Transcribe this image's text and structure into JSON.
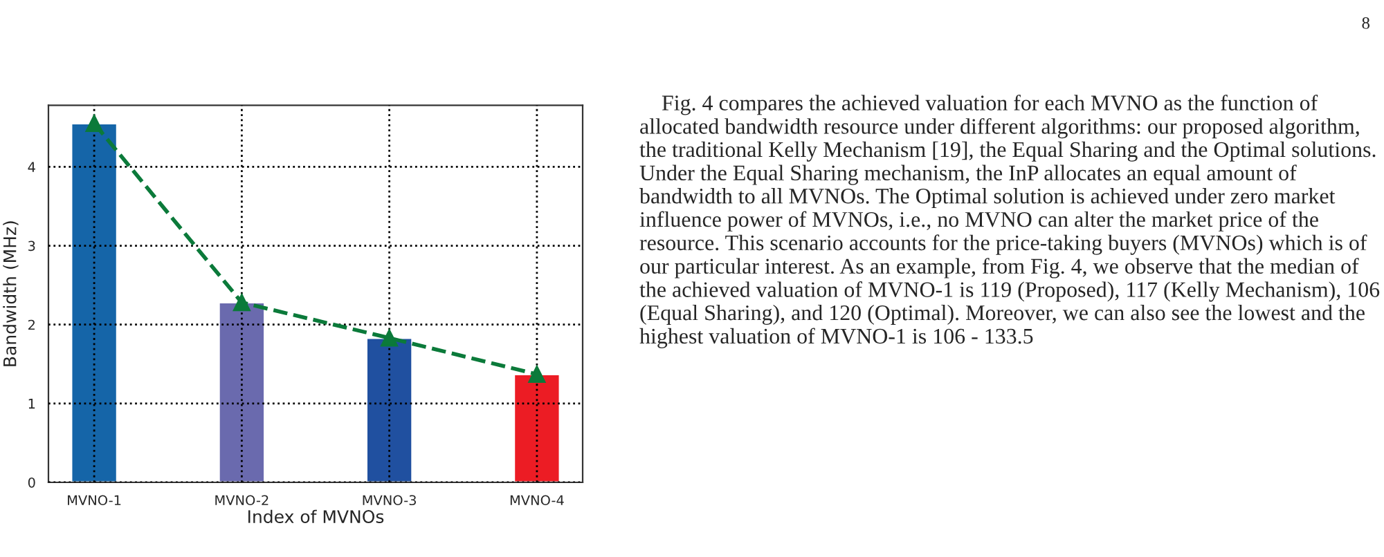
{
  "chart_data": {
    "type": "bar",
    "xlabel": "Index of MVNOs",
    "ylabel": "Bandwidth (MHz)",
    "categories": [
      "MVNO-1",
      "MVNO-2",
      "MVNO-3",
      "MVNO-4"
    ],
    "series": [
      {
        "colors": [
          "#1565a8",
          "#6a6aae",
          "#2050a0",
          "#ec1c24"
        ],
        "values": [
          4.55,
          2.28,
          1.83,
          1.37
        ]
      },
      {
        "type": "line",
        "color": "#0b7a3a",
        "values": [
          4.55,
          2.28,
          1.83,
          1.37
        ],
        "marker": "triangle",
        "line_style": "dashed"
      }
    ],
    "ylim": [
      0,
      4.78
    ],
    "yticks": [
      0,
      1,
      2,
      3,
      4
    ],
    "grid": true,
    "legend": false,
    "annotations": [
      "8",
      "Fig. 4 compares the achieved valuation for each MVNO as the function of allocated bandwidth resource under different algorithms: our proposed algorithm, the traditional Kelly Mechanism [19], the Equal Sharing and the Optimal solutions. Under the Equal Sharing mechanism, the InP allocates an equal amount of bandwidth to all MVNOs. The Optimal solution is achieved under zero market influence power of MVNOs, i.e., no MVNO can alter the market price of the resource. This scenario accounts for the price-taking buyers (MVNOs) which is of our particular interest. As an example, from Fig. 4, we observe that the median of the achieved valuation of MVNO-1 is 119 (Proposed), 117 (Kelly Mechanism), 106 (Equal Sharing), and 120 (Optimal). Moreover, we can also see the lowest and the highest valuation of MVNO-1 is 106 - 133.5"
    ]
  }
}
